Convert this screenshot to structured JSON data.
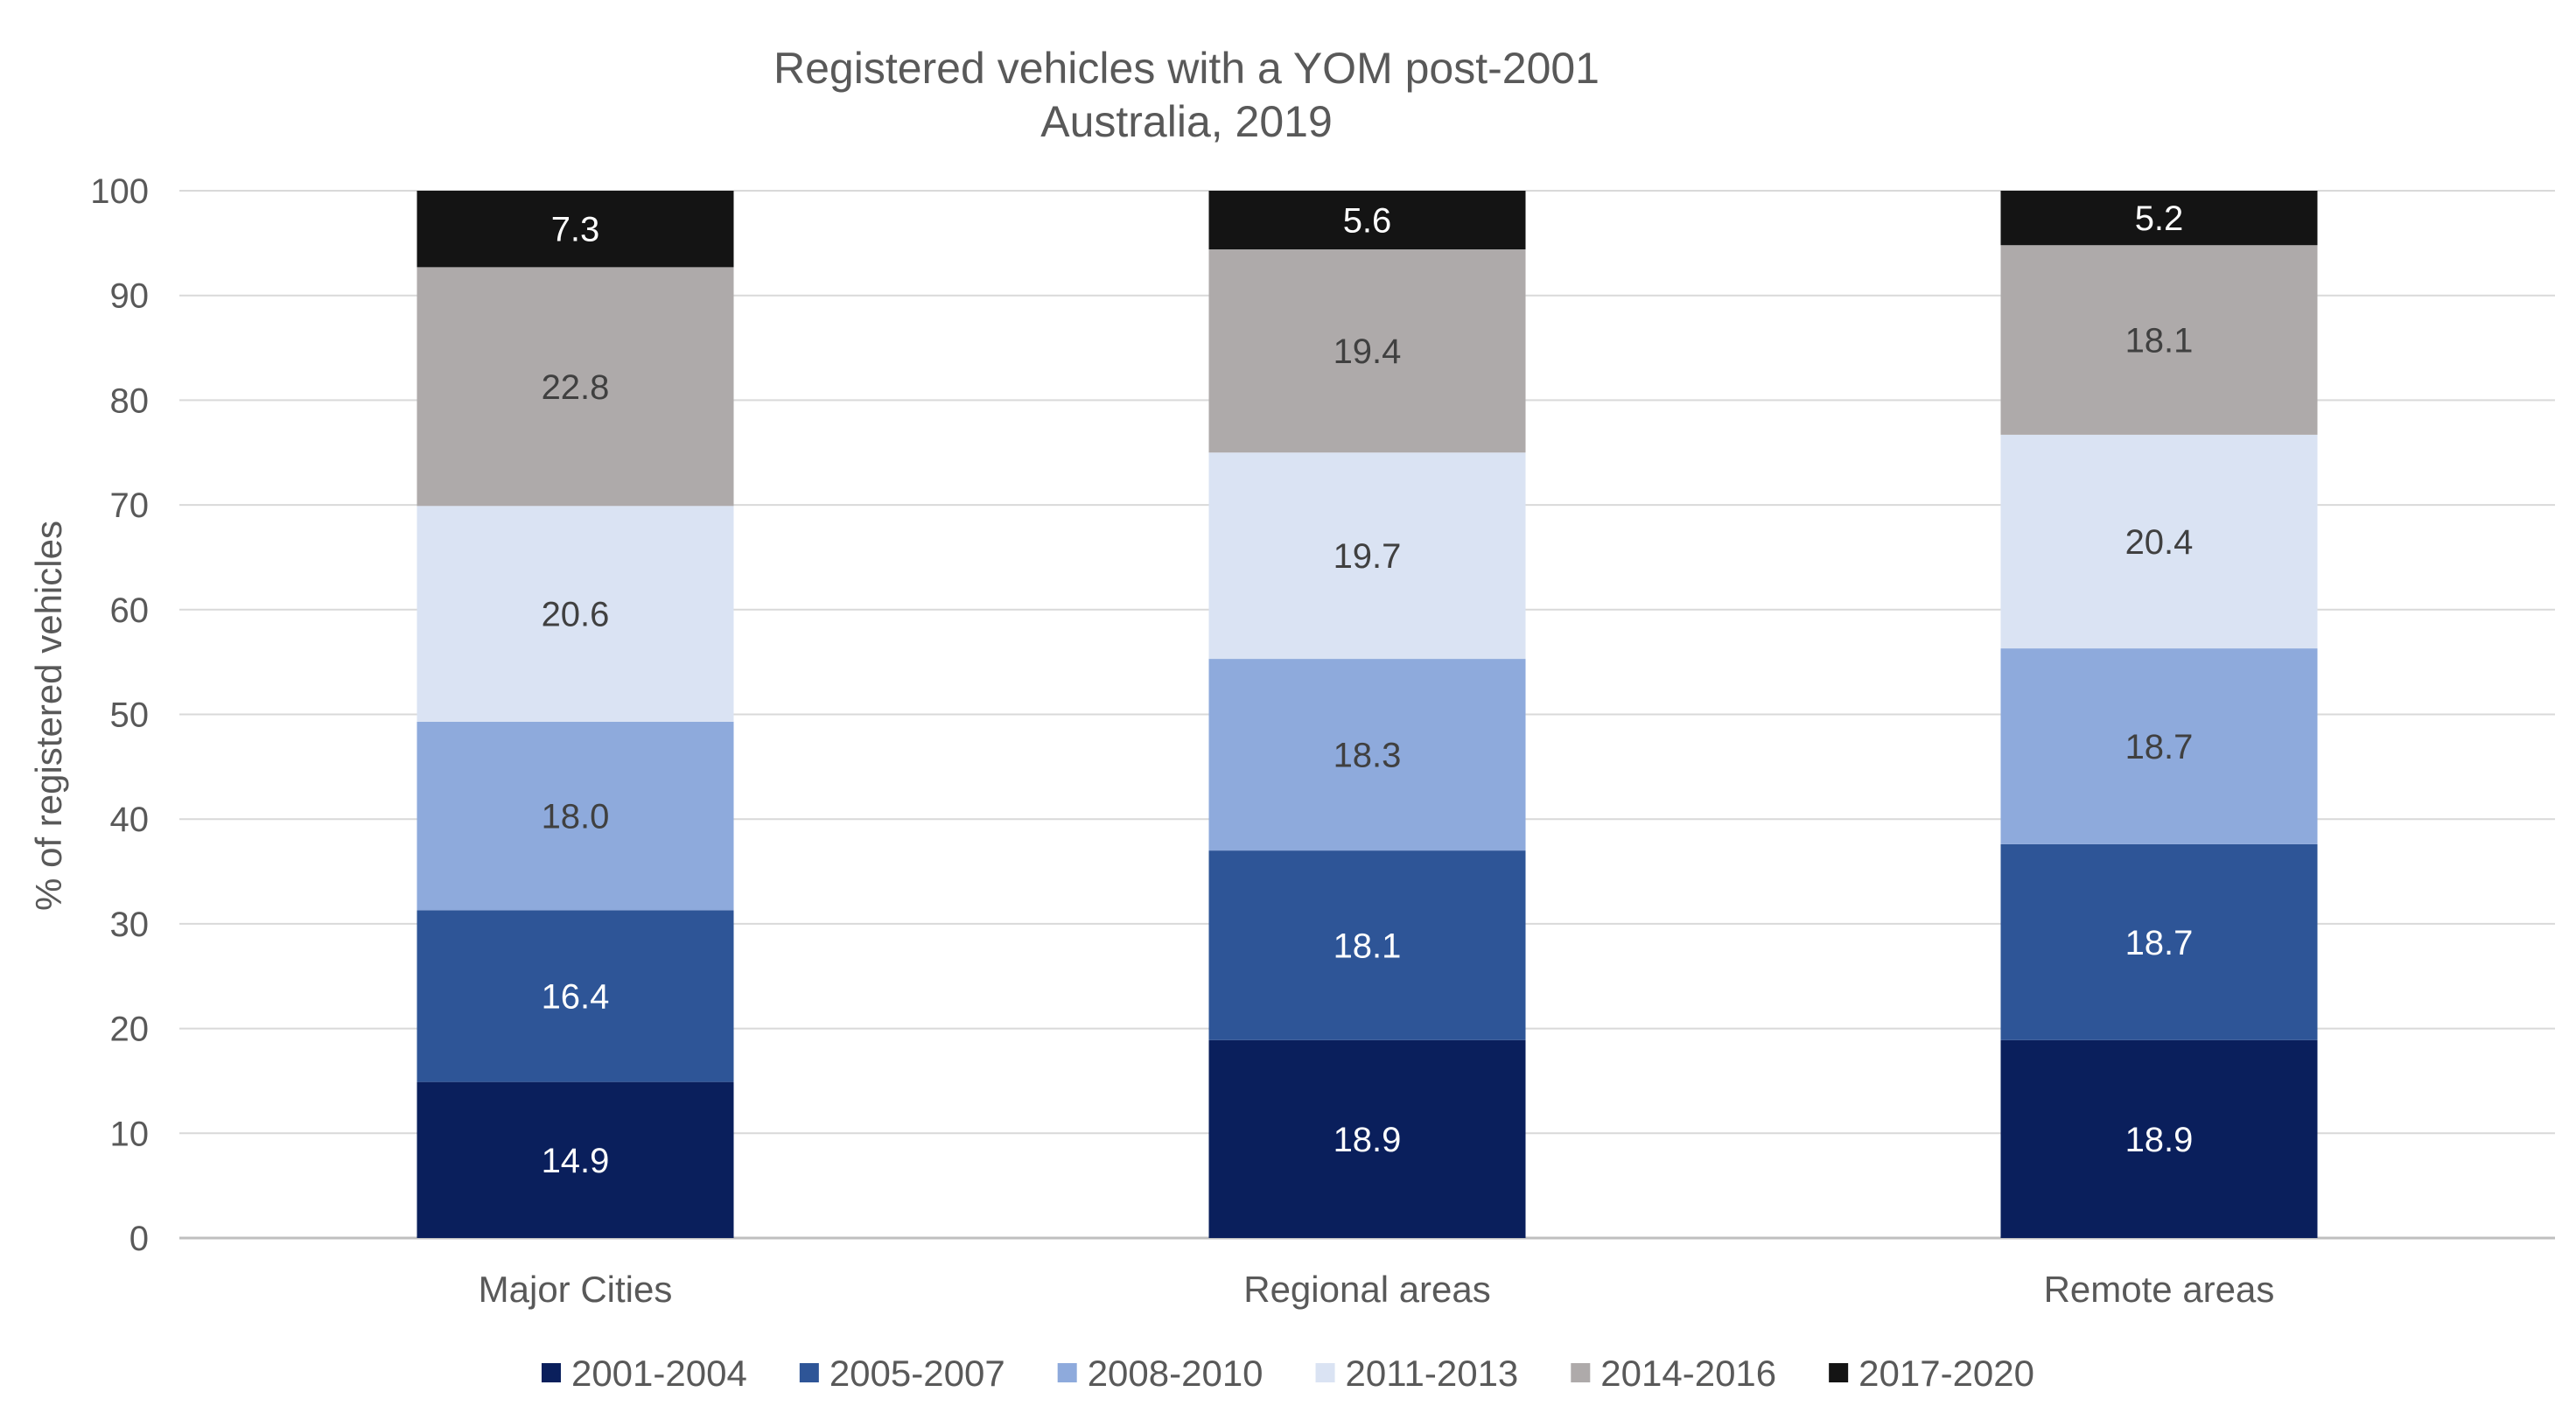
{
  "chart_data": {
    "type": "bar",
    "stacked": true,
    "title": "Registered vehicles with a YOM post-2001",
    "subtitle": "Australia, 2019",
    "xlabel": "",
    "ylabel": "% of registered vehicles",
    "ylim": [
      0,
      100
    ],
    "yticks": [
      0,
      10,
      20,
      30,
      40,
      50,
      60,
      70,
      80,
      90,
      100
    ],
    "grid": true,
    "legend_position": "bottom",
    "categories": [
      "Major Cities",
      "Regional areas",
      "Remote areas"
    ],
    "series": [
      {
        "name": "2001-2004",
        "color": "#0a1f5c",
        "label_color": "#ffffff",
        "values": [
          14.9,
          18.9,
          18.9
        ]
      },
      {
        "name": "2005-2007",
        "color": "#2e5597",
        "label_color": "#ffffff",
        "values": [
          16.4,
          18.1,
          18.7
        ]
      },
      {
        "name": "2008-2010",
        "color": "#8eaadc",
        "label_color": "#404040",
        "values": [
          18.0,
          18.3,
          18.7
        ]
      },
      {
        "name": "2011-2013",
        "color": "#dae3f3",
        "label_color": "#404040",
        "values": [
          20.6,
          19.7,
          20.4
        ]
      },
      {
        "name": "2014-2016",
        "color": "#aeaaaa",
        "label_color": "#404040",
        "values": [
          22.8,
          19.4,
          18.1
        ]
      },
      {
        "name": "2017-2020",
        "color": "#141414",
        "label_color": "#ffffff",
        "values": [
          7.3,
          5.6,
          5.2
        ]
      }
    ]
  }
}
